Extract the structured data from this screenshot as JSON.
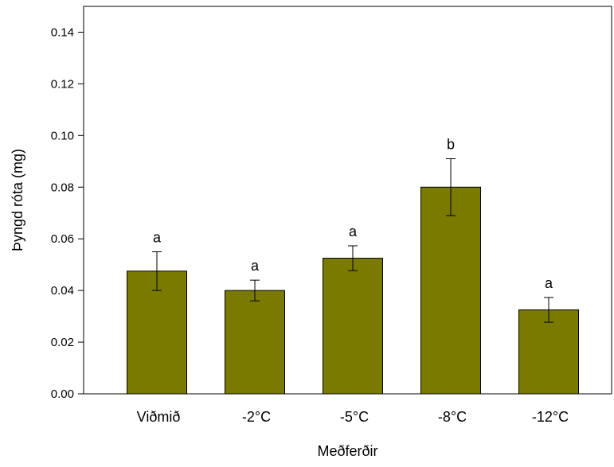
{
  "colors": {
    "bar_fill": "#7a7a00",
    "bar_stroke": "#000000",
    "axis": "#000000"
  },
  "chart_data": {
    "type": "bar",
    "title": "",
    "xlabel": "Meðferðir",
    "ylabel": "Þyngd róta (mg)",
    "categories": [
      "Viðmið",
      "-2°C",
      "-5°C",
      "-8°C",
      "-12°C"
    ],
    "values": [
      0.0475,
      0.04,
      0.0525,
      0.08,
      0.0325
    ],
    "error": [
      0.0075,
      0.004,
      0.0048,
      0.011,
      0.0048
    ],
    "letters": [
      "a",
      "a",
      "a",
      "b",
      "a"
    ],
    "ylim": [
      0,
      0.15
    ],
    "yticks": [
      "0.00",
      "0.02",
      "0.04",
      "0.06",
      "0.08",
      "0.10",
      "0.12",
      "0.14"
    ],
    "grid": false,
    "legend": "none"
  }
}
